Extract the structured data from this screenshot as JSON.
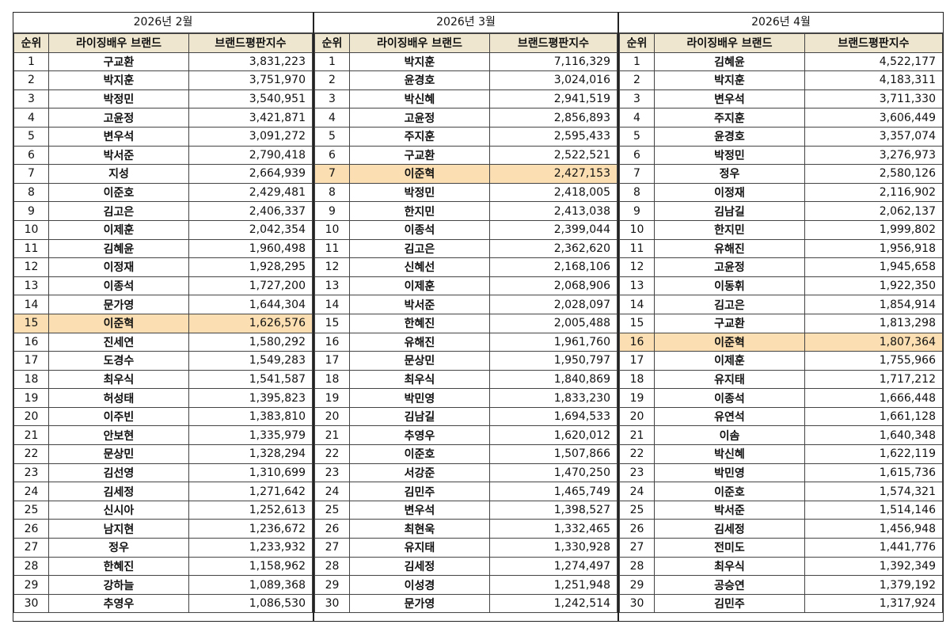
{
  "columns": {
    "rank": "순위",
    "name": "라이징배우 브랜드",
    "score": "브랜드평판지수"
  },
  "colors": {
    "header_bg": "#efe6cf",
    "highlight": "#fbdfb2",
    "border": "#444444"
  },
  "panels": [
    {
      "title": "2026년 2월",
      "highlight_rank": 15,
      "rows": [
        {
          "rank": "1",
          "name": "구교환",
          "score": "3,831,223"
        },
        {
          "rank": "2",
          "name": "박지훈",
          "score": "3,751,970"
        },
        {
          "rank": "3",
          "name": "박정민",
          "score": "3,540,951"
        },
        {
          "rank": "4",
          "name": "고윤정",
          "score": "3,421,871"
        },
        {
          "rank": "5",
          "name": "변우석",
          "score": "3,091,272"
        },
        {
          "rank": "6",
          "name": "박서준",
          "score": "2,790,418"
        },
        {
          "rank": "7",
          "name": "지성",
          "score": "2,664,939"
        },
        {
          "rank": "8",
          "name": "이준호",
          "score": "2,429,481"
        },
        {
          "rank": "9",
          "name": "김고은",
          "score": "2,406,337"
        },
        {
          "rank": "10",
          "name": "이제훈",
          "score": "2,042,354"
        },
        {
          "rank": "11",
          "name": "김혜윤",
          "score": "1,960,498"
        },
        {
          "rank": "12",
          "name": "이정재",
          "score": "1,928,295"
        },
        {
          "rank": "13",
          "name": "이종석",
          "score": "1,727,200"
        },
        {
          "rank": "14",
          "name": "문가영",
          "score": "1,644,304"
        },
        {
          "rank": "15",
          "name": "이준혁",
          "score": "1,626,576"
        },
        {
          "rank": "16",
          "name": "진세연",
          "score": "1,580,292"
        },
        {
          "rank": "17",
          "name": "도경수",
          "score": "1,549,283"
        },
        {
          "rank": "18",
          "name": "최우식",
          "score": "1,541,587"
        },
        {
          "rank": "19",
          "name": "허성태",
          "score": "1,395,823"
        },
        {
          "rank": "20",
          "name": "이주빈",
          "score": "1,383,810"
        },
        {
          "rank": "21",
          "name": "안보현",
          "score": "1,335,979"
        },
        {
          "rank": "22",
          "name": "문상민",
          "score": "1,328,294"
        },
        {
          "rank": "23",
          "name": "김선영",
          "score": "1,310,699"
        },
        {
          "rank": "24",
          "name": "김세정",
          "score": "1,271,642"
        },
        {
          "rank": "25",
          "name": "신시아",
          "score": "1,252,613"
        },
        {
          "rank": "26",
          "name": "남지현",
          "score": "1,236,672"
        },
        {
          "rank": "27",
          "name": "정우",
          "score": "1,233,932"
        },
        {
          "rank": "28",
          "name": "한혜진",
          "score": "1,158,962"
        },
        {
          "rank": "29",
          "name": "강하늘",
          "score": "1,089,368"
        },
        {
          "rank": "30",
          "name": "추영우",
          "score": "1,086,530"
        }
      ]
    },
    {
      "title": "2026년 3월",
      "highlight_rank": 7,
      "rows": [
        {
          "rank": "1",
          "name": "박지훈",
          "score": "7,116,329"
        },
        {
          "rank": "2",
          "name": "윤경호",
          "score": "3,024,016"
        },
        {
          "rank": "3",
          "name": "박신혜",
          "score": "2,941,519"
        },
        {
          "rank": "4",
          "name": "고윤정",
          "score": "2,856,893"
        },
        {
          "rank": "5",
          "name": "주지훈",
          "score": "2,595,433"
        },
        {
          "rank": "6",
          "name": "구교환",
          "score": "2,522,521"
        },
        {
          "rank": "7",
          "name": "이준혁",
          "score": "2,427,153"
        },
        {
          "rank": "8",
          "name": "박정민",
          "score": "2,418,005"
        },
        {
          "rank": "9",
          "name": "한지민",
          "score": "2,413,038"
        },
        {
          "rank": "10",
          "name": "이종석",
          "score": "2,399,044"
        },
        {
          "rank": "11",
          "name": "김고은",
          "score": "2,362,620"
        },
        {
          "rank": "12",
          "name": "신혜선",
          "score": "2,168,106"
        },
        {
          "rank": "13",
          "name": "이제훈",
          "score": "2,068,906"
        },
        {
          "rank": "14",
          "name": "박서준",
          "score": "2,028,097"
        },
        {
          "rank": "15",
          "name": "한혜진",
          "score": "2,005,488"
        },
        {
          "rank": "16",
          "name": "유해진",
          "score": "1,961,760"
        },
        {
          "rank": "17",
          "name": "문상민",
          "score": "1,950,797"
        },
        {
          "rank": "18",
          "name": "최우식",
          "score": "1,840,869"
        },
        {
          "rank": "19",
          "name": "박민영",
          "score": "1,833,230"
        },
        {
          "rank": "20",
          "name": "김남길",
          "score": "1,694,533"
        },
        {
          "rank": "21",
          "name": "추영우",
          "score": "1,620,012"
        },
        {
          "rank": "22",
          "name": "이준호",
          "score": "1,507,866"
        },
        {
          "rank": "23",
          "name": "서강준",
          "score": "1,470,250"
        },
        {
          "rank": "24",
          "name": "김민주",
          "score": "1,465,749"
        },
        {
          "rank": "25",
          "name": "변우석",
          "score": "1,398,527"
        },
        {
          "rank": "26",
          "name": "최현욱",
          "score": "1,332,465"
        },
        {
          "rank": "27",
          "name": "유지태",
          "score": "1,330,928"
        },
        {
          "rank": "28",
          "name": "김세정",
          "score": "1,274,497"
        },
        {
          "rank": "29",
          "name": "이성경",
          "score": "1,251,948"
        },
        {
          "rank": "30",
          "name": "문가영",
          "score": "1,242,514"
        }
      ]
    },
    {
      "title": "2026년 4월",
      "highlight_rank": 16,
      "rows": [
        {
          "rank": "1",
          "name": "김혜윤",
          "score": "4,522,177"
        },
        {
          "rank": "2",
          "name": "박지훈",
          "score": "4,183,311"
        },
        {
          "rank": "3",
          "name": "변우석",
          "score": "3,711,330"
        },
        {
          "rank": "4",
          "name": "주지훈",
          "score": "3,606,449"
        },
        {
          "rank": "5",
          "name": "윤경호",
          "score": "3,357,074"
        },
        {
          "rank": "6",
          "name": "박정민",
          "score": "3,276,973"
        },
        {
          "rank": "7",
          "name": "정우",
          "score": "2,580,126"
        },
        {
          "rank": "8",
          "name": "이정재",
          "score": "2,116,902"
        },
        {
          "rank": "9",
          "name": "김남길",
          "score": "2,062,137"
        },
        {
          "rank": "10",
          "name": "한지민",
          "score": "1,999,802"
        },
        {
          "rank": "11",
          "name": "유해진",
          "score": "1,956,918"
        },
        {
          "rank": "12",
          "name": "고윤정",
          "score": "1,945,658"
        },
        {
          "rank": "13",
          "name": "이동휘",
          "score": "1,922,350"
        },
        {
          "rank": "14",
          "name": "김고은",
          "score": "1,854,914"
        },
        {
          "rank": "15",
          "name": "구교환",
          "score": "1,813,298"
        },
        {
          "rank": "16",
          "name": "이준혁",
          "score": "1,807,364"
        },
        {
          "rank": "17",
          "name": "이제훈",
          "score": "1,755,966"
        },
        {
          "rank": "18",
          "name": "유지태",
          "score": "1,717,212"
        },
        {
          "rank": "19",
          "name": "이종석",
          "score": "1,666,448"
        },
        {
          "rank": "20",
          "name": "유연석",
          "score": "1,661,128"
        },
        {
          "rank": "21",
          "name": "이솜",
          "score": "1,640,348"
        },
        {
          "rank": "22",
          "name": "박신혜",
          "score": "1,622,119"
        },
        {
          "rank": "23",
          "name": "박민영",
          "score": "1,615,736"
        },
        {
          "rank": "24",
          "name": "이준호",
          "score": "1,574,321"
        },
        {
          "rank": "25",
          "name": "박서준",
          "score": "1,514,146"
        },
        {
          "rank": "26",
          "name": "김세정",
          "score": "1,456,948"
        },
        {
          "rank": "27",
          "name": "전미도",
          "score": "1,441,776"
        },
        {
          "rank": "28",
          "name": "최우식",
          "score": "1,392,349"
        },
        {
          "rank": "29",
          "name": "공승연",
          "score": "1,379,192"
        },
        {
          "rank": "30",
          "name": "김민주",
          "score": "1,317,924"
        }
      ]
    }
  ]
}
